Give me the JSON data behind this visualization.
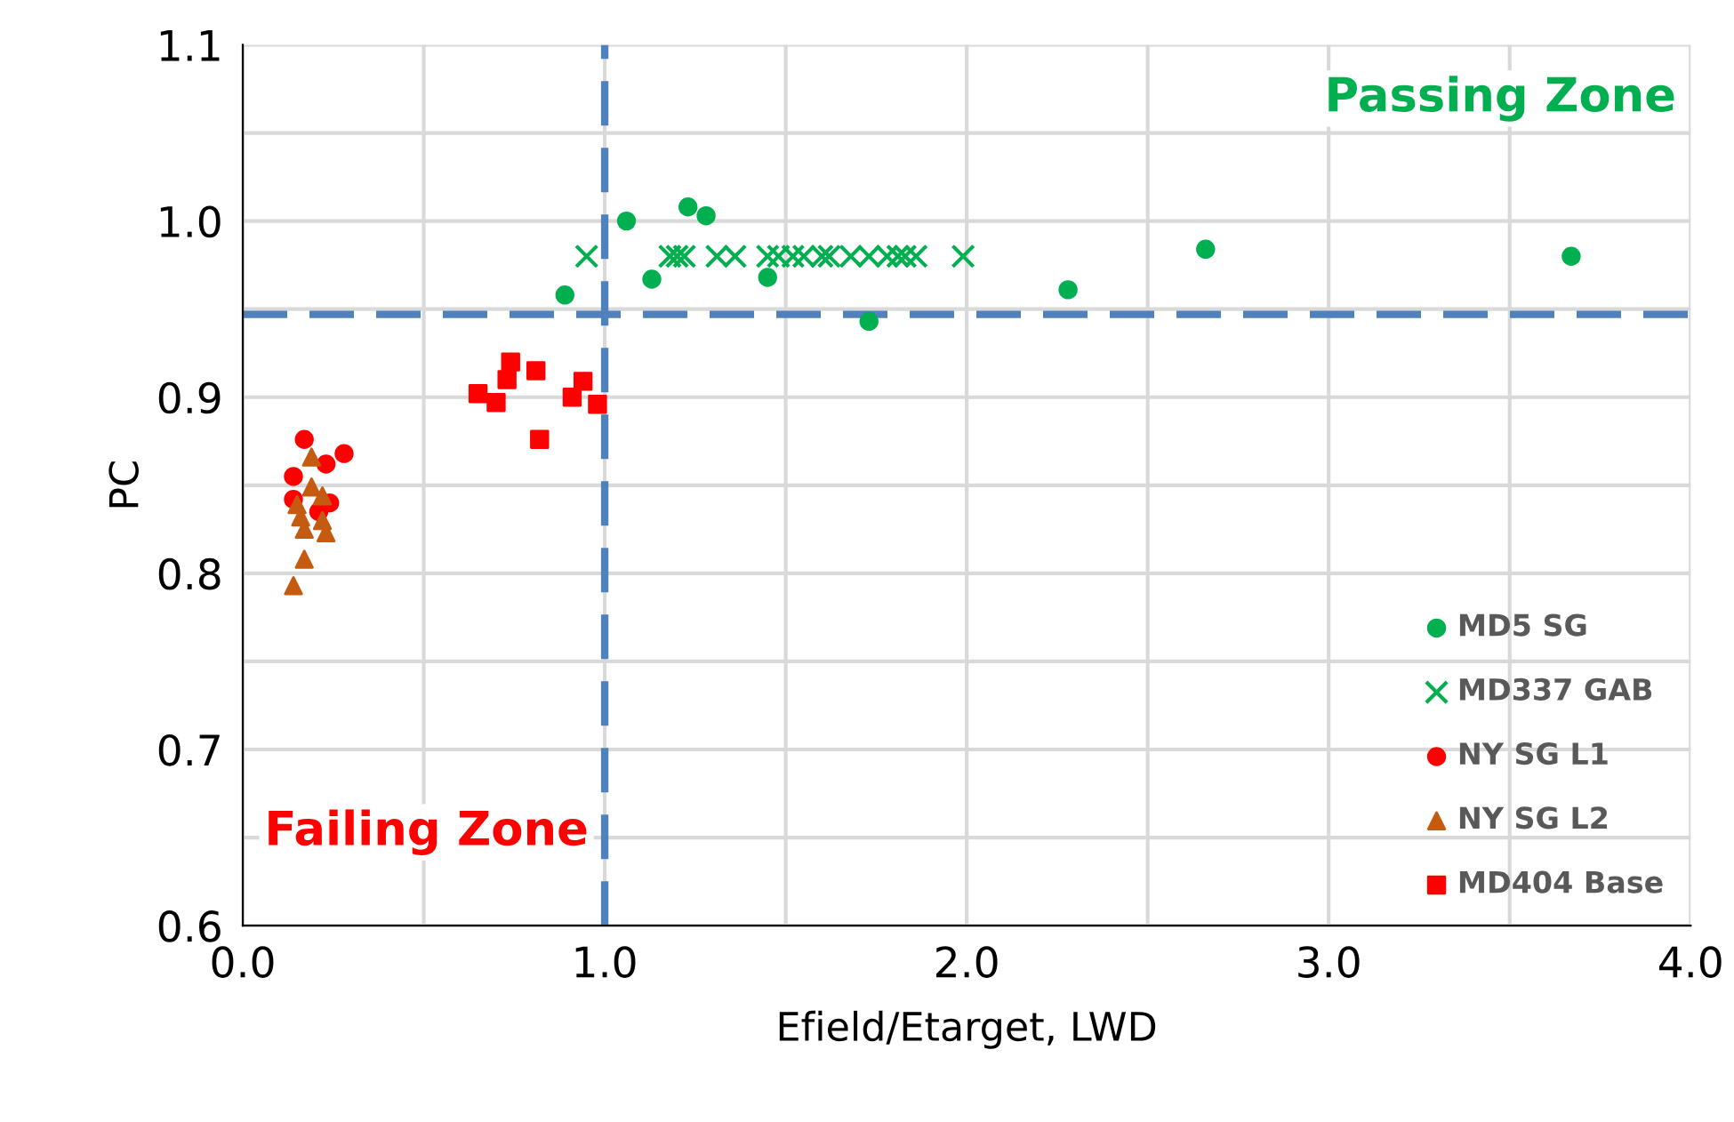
{
  "chart_data": {
    "type": "scatter",
    "xlabel": "Efield/Etarget, LWD",
    "ylabel": "PC",
    "xlim": [
      0,
      4
    ],
    "ylim": [
      0.6,
      1.1
    ],
    "xticks": [
      {
        "value": 0,
        "label": "0.0"
      },
      {
        "value": 0.5,
        "label": null
      },
      {
        "value": 1,
        "label": "1.0"
      },
      {
        "value": 1.5,
        "label": null
      },
      {
        "value": 2,
        "label": "2.0"
      },
      {
        "value": 2.5,
        "label": null
      },
      {
        "value": 3,
        "label": "3.0"
      },
      {
        "value": 3.5,
        "label": null
      },
      {
        "value": 4,
        "label": "4.0"
      }
    ],
    "yticks": [
      0.6,
      {
        "value": 0.65,
        "label": null
      },
      0.7,
      {
        "value": 0.75,
        "label": null
      },
      0.8,
      {
        "value": 0.85,
        "label": null
      },
      0.9,
      {
        "value": 0.95,
        "label": null
      },
      {
        "value": 1.0,
        "label": "1.0"
      },
      {
        "value": 1.05,
        "label": null
      },
      1.1
    ],
    "grid": true,
    "legend": "bottom right",
    "series": [
      {
        "name": "MD5 SG",
        "color": "#00b050",
        "marker": "circle",
        "x": [
          0.89,
          1.06,
          1.13,
          1.23,
          1.28,
          1.45,
          1.73,
          2.28,
          2.66,
          3.67
        ],
        "values": [
          0.958,
          1.0,
          0.967,
          1.008,
          1.003,
          0.968,
          0.943,
          0.961,
          0.984,
          0.98
        ]
      },
      {
        "name": "MD337 GAB",
        "color": "#00b050",
        "marker": "cross",
        "x": [
          0.95,
          1.18,
          1.2,
          1.22,
          1.31,
          1.36,
          1.45,
          1.48,
          1.52,
          1.55,
          1.6,
          1.62,
          1.68,
          1.73,
          1.78,
          1.81,
          1.83,
          1.86,
          1.99
        ],
        "values": [
          0.98,
          0.98,
          0.98,
          0.98,
          0.98,
          0.98,
          0.98,
          0.98,
          0.98,
          0.98,
          0.98,
          0.98,
          0.98,
          0.98,
          0.98,
          0.98,
          0.98,
          0.98,
          0.98
        ]
      },
      {
        "name": "NY SG L1",
        "color": "#ff0000",
        "marker": "circle",
        "x": [
          0.17,
          0.28,
          0.23,
          0.14,
          0.14,
          0.24,
          0.21
        ],
        "values": [
          0.876,
          0.868,
          0.862,
          0.855,
          0.842,
          0.84,
          0.835
        ]
      },
      {
        "name": "NY SG L2",
        "color": "#c55a11",
        "marker": "triangle",
        "x": [
          0.19,
          0.19,
          0.22,
          0.15,
          0.16,
          0.22,
          0.17,
          0.23,
          0.17,
          0.14
        ],
        "values": [
          0.866,
          0.849,
          0.844,
          0.839,
          0.832,
          0.83,
          0.825,
          0.823,
          0.808,
          0.793
        ]
      },
      {
        "name": "MD404 Base",
        "color": "#ff0000",
        "marker": "square",
        "x": [
          0.74,
          0.73,
          0.81,
          0.65,
          0.7,
          0.82,
          0.94,
          0.91,
          0.98
        ],
        "values": [
          0.92,
          0.91,
          0.915,
          0.902,
          0.897,
          0.876,
          0.909,
          0.9,
          0.896
        ]
      }
    ],
    "ref_lines": [
      {
        "axis": "y",
        "value": 0.947,
        "color": "#4f81bd",
        "line_style": "dashed"
      },
      {
        "axis": "x",
        "value": 1.0,
        "color": "#4f81bd",
        "line_style": "dashed"
      }
    ],
    "annotations": [
      "Passing Zone",
      "Failing Zone"
    ]
  }
}
